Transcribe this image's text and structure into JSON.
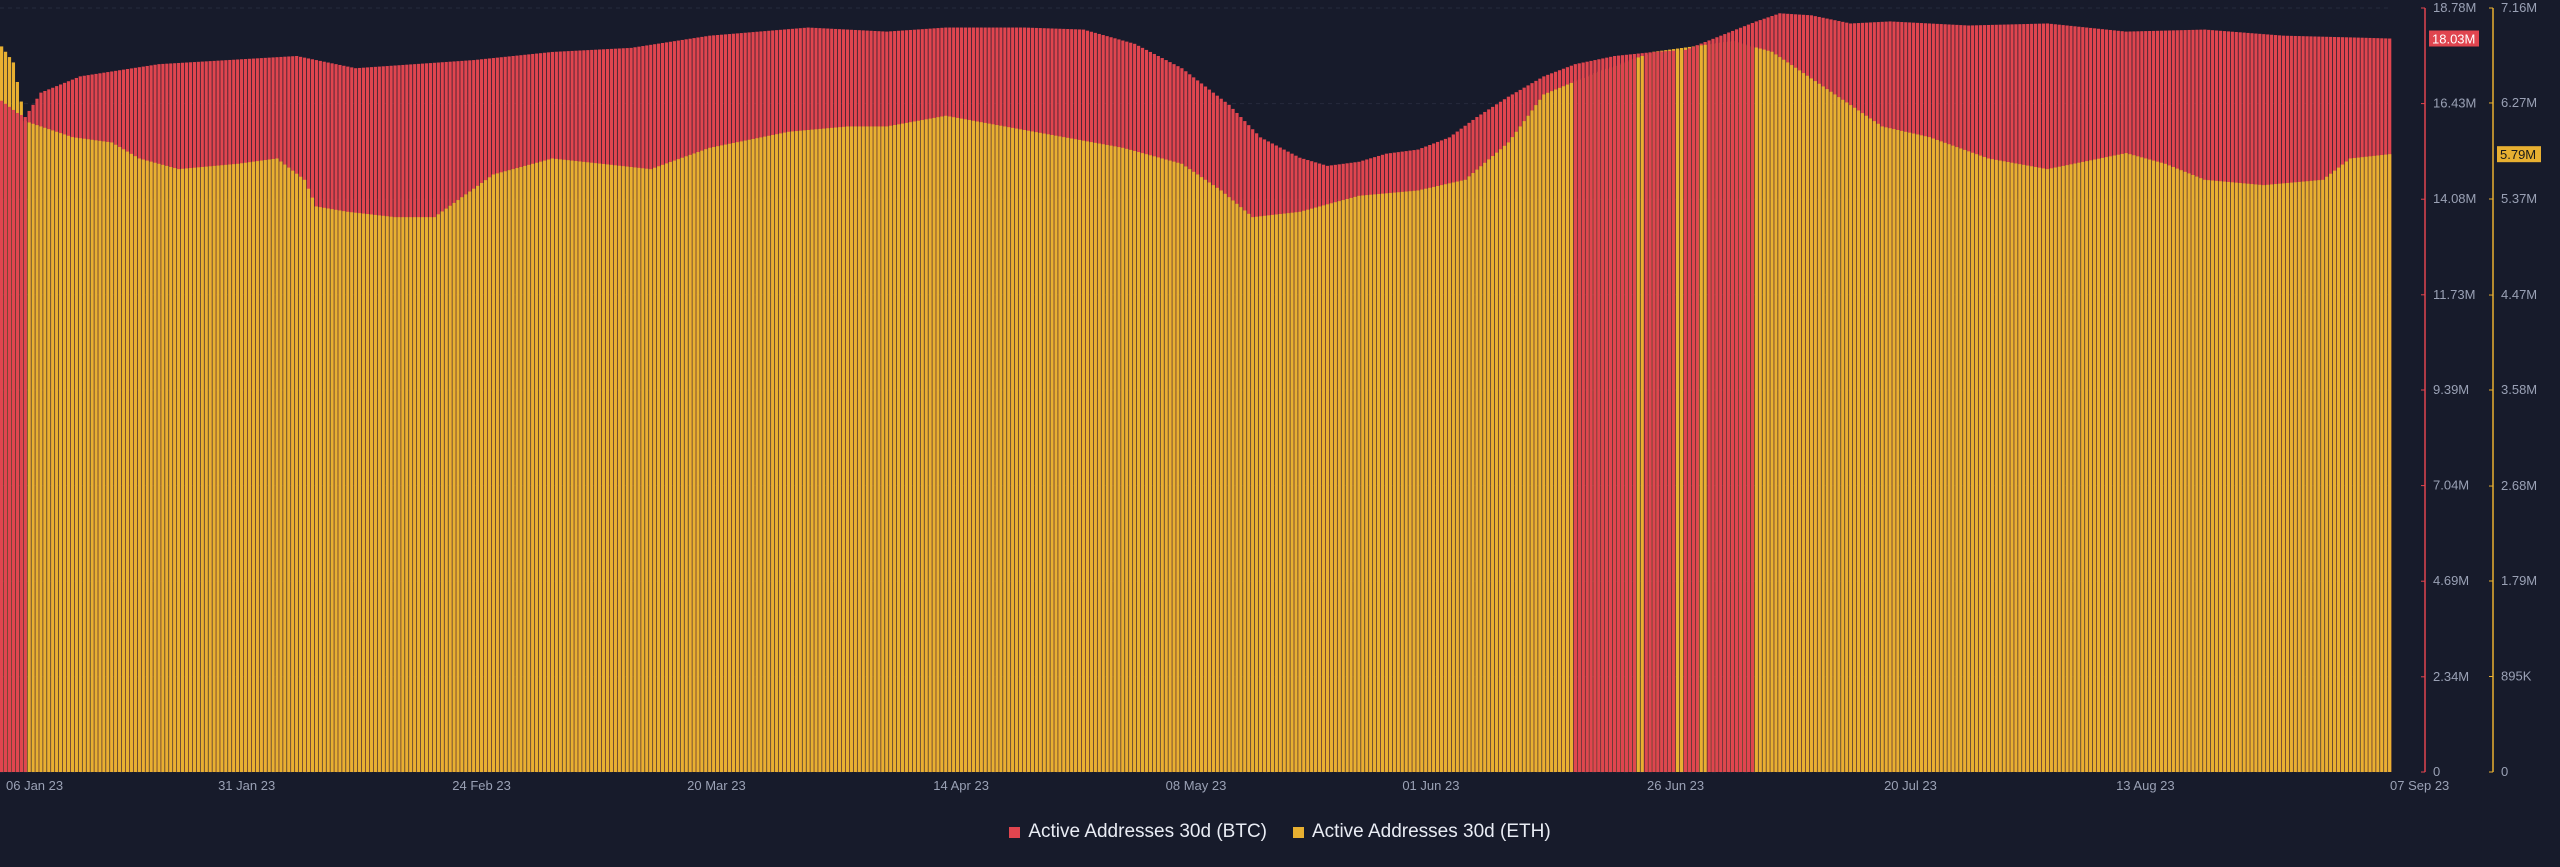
{
  "chart_data": {
    "type": "bar",
    "x_range": [
      "2023-01-06",
      "2023-09-07"
    ],
    "x_tick_labels": [
      "06 Jan 23",
      "31 Jan 23",
      "24 Feb 23",
      "20 Mar 23",
      "14 Apr 23",
      "08 May 23",
      "01 Jun 23",
      "26 Jun 23",
      "20 Jul 23",
      "13 Aug 23",
      "07 Sep 23"
    ],
    "series": [
      {
        "name": "Active Addresses 30d (BTC)",
        "color": "#e0454f",
        "axis": "left",
        "keypoints": [
          [
            0,
            16.5
          ],
          [
            4,
            16.2
          ],
          [
            6,
            16.1
          ],
          [
            10,
            16.7
          ],
          [
            20,
            17.1
          ],
          [
            40,
            17.4
          ],
          [
            75,
            17.6
          ],
          [
            90,
            17.3
          ],
          [
            120,
            17.5
          ],
          [
            140,
            17.7
          ],
          [
            160,
            17.8
          ],
          [
            180,
            18.1
          ],
          [
            205,
            18.3
          ],
          [
            225,
            18.2
          ],
          [
            240,
            18.3
          ],
          [
            260,
            18.3
          ],
          [
            275,
            18.25
          ],
          [
            288,
            17.9
          ],
          [
            300,
            17.3
          ],
          [
            312,
            16.4
          ],
          [
            320,
            15.6
          ],
          [
            330,
            15.1
          ],
          [
            337,
            14.9
          ],
          [
            345,
            15.0
          ],
          [
            352,
            15.2
          ],
          [
            360,
            15.3
          ],
          [
            368,
            15.6
          ],
          [
            375,
            16.1
          ],
          [
            383,
            16.6
          ],
          [
            392,
            17.1
          ],
          [
            400,
            17.4
          ],
          [
            410,
            17.6
          ],
          [
            420,
            17.7
          ],
          [
            428,
            17.75
          ],
          [
            437,
            18.1
          ],
          [
            446,
            18.45
          ],
          [
            452,
            18.65
          ],
          [
            460,
            18.6
          ],
          [
            470,
            18.4
          ],
          [
            480,
            18.45
          ],
          [
            500,
            18.35
          ],
          [
            520,
            18.4
          ],
          [
            540,
            18.2
          ],
          [
            560,
            18.25
          ],
          [
            580,
            18.1
          ],
          [
            600,
            18.05
          ],
          [
            607,
            18.03
          ]
        ],
        "last_value_label": "18.03M"
      },
      {
        "name": "Active Addresses 30d (ETH)",
        "color": "#e8b031",
        "axis": "right",
        "keypoints": [
          [
            0,
            6.8
          ],
          [
            3,
            6.65
          ],
          [
            6,
            6.1
          ],
          [
            10,
            6.05
          ],
          [
            18,
            5.95
          ],
          [
            28,
            5.9
          ],
          [
            35,
            5.75
          ],
          [
            45,
            5.65
          ],
          [
            60,
            5.7
          ],
          [
            70,
            5.75
          ],
          [
            77,
            5.55
          ],
          [
            80,
            5.3
          ],
          [
            88,
            5.25
          ],
          [
            100,
            5.2
          ],
          [
            110,
            5.2
          ],
          [
            125,
            5.6
          ],
          [
            140,
            5.75
          ],
          [
            165,
            5.65
          ],
          [
            180,
            5.85
          ],
          [
            200,
            6.0
          ],
          [
            215,
            6.05
          ],
          [
            225,
            6.05
          ],
          [
            240,
            6.15
          ],
          [
            255,
            6.05
          ],
          [
            270,
            5.95
          ],
          [
            285,
            5.85
          ],
          [
            300,
            5.7
          ],
          [
            310,
            5.45
          ],
          [
            318,
            5.2
          ],
          [
            330,
            5.25
          ],
          [
            345,
            5.4
          ],
          [
            360,
            5.45
          ],
          [
            372,
            5.55
          ],
          [
            383,
            5.9
          ],
          [
            392,
            6.35
          ],
          [
            405,
            6.55
          ],
          [
            420,
            6.75
          ],
          [
            440,
            6.85
          ],
          [
            450,
            6.75
          ],
          [
            460,
            6.5
          ],
          [
            470,
            6.25
          ],
          [
            478,
            6.05
          ],
          [
            490,
            5.95
          ],
          [
            505,
            5.75
          ],
          [
            520,
            5.65
          ],
          [
            540,
            5.8
          ],
          [
            550,
            5.7
          ],
          [
            560,
            5.55
          ],
          [
            575,
            5.5
          ],
          [
            590,
            5.55
          ],
          [
            597,
            5.75
          ],
          [
            607,
            5.79
          ]
        ],
        "last_value_label": "5.79M"
      }
    ],
    "btc_dominant_ranges": [
      [
        0,
        6
      ],
      [
        400,
        415
      ],
      [
        418,
        425
      ],
      [
        428,
        431
      ],
      [
        434,
        445
      ]
    ],
    "n_days": 608,
    "left_axis": {
      "range_millions": [
        0,
        18.78
      ],
      "tick_values": [
        0,
        2.34,
        4.69,
        7.04,
        9.39,
        11.73,
        14.08,
        16.43,
        18.78
      ],
      "tick_labels": [
        "0",
        "2.34M",
        "4.69M",
        "7.04M",
        "9.39M",
        "11.73M",
        "14.08M",
        "16.43M",
        "18.78M"
      ]
    },
    "right_axis": {
      "range_millions": [
        0,
        7.16
      ],
      "tick_values": [
        0,
        0.895,
        1.79,
        2.68,
        3.58,
        4.47,
        5.37,
        6.27,
        7.16
      ],
      "tick_labels": [
        "0",
        "895K",
        "1.79M",
        "2.68M",
        "3.58M",
        "4.47M",
        "5.37M",
        "6.27M",
        "7.16M"
      ]
    },
    "grid": "horizontal",
    "legend_position": "bottom-center"
  },
  "legend": {
    "btc_label": "Active Addresses 30d (BTC)",
    "eth_label": "Active Addresses 30d (ETH)",
    "btc_color": "#e0454f",
    "eth_color": "#e8b031"
  },
  "colors": {
    "background": "#171b2b",
    "grid": "#262b3d",
    "axis_text": "#9aa1b5"
  }
}
